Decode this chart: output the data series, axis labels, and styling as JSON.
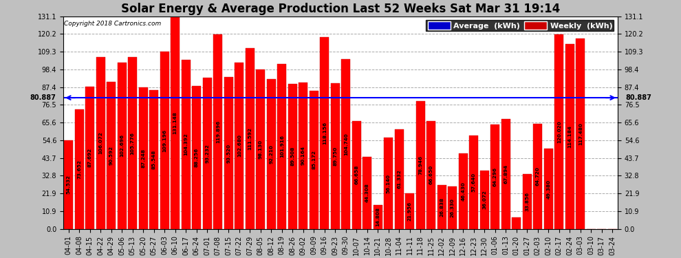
{
  "title": "Solar Energy & Average Production Last 52 Weeks Sat Mar 31 19:14",
  "copyright": "Copyright 2018 Cartronics.com",
  "average_line": 80.887,
  "average_label": "80.887",
  "ylim": [
    0,
    131.1
  ],
  "yticks": [
    0.0,
    10.9,
    21.9,
    32.8,
    43.7,
    54.6,
    65.6,
    76.5,
    87.4,
    98.4,
    109.3,
    120.2,
    131.1
  ],
  "bar_color": "#FF0000",
  "avg_line_color": "#0000FF",
  "background_color": "#C0C0C0",
  "plot_bg_color": "#FFFFFF",
  "legend_avg_color": "#0000CC",
  "legend_weekly_color": "#CC0000",
  "labels": [
    "04-01",
    "04-08",
    "04-15",
    "04-22",
    "04-29",
    "05-06",
    "05-13",
    "05-20",
    "05-27",
    "06-03",
    "06-10",
    "06-17",
    "06-24",
    "07-01",
    "07-08",
    "07-15",
    "07-22",
    "07-29",
    "08-05",
    "08-12",
    "08-19",
    "08-26",
    "09-02",
    "09-09",
    "09-16",
    "09-23",
    "09-30",
    "10-07",
    "10-14",
    "10-21",
    "10-28",
    "11-04",
    "11-11",
    "11-18",
    "11-25",
    "12-02",
    "12-09",
    "12-16",
    "12-23",
    "12-30",
    "01-06",
    "01-13",
    "01-20",
    "01-27",
    "02-03",
    "02-10",
    "02-17",
    "02-24",
    "03-03",
    "03-10",
    "03-17",
    "03-24"
  ],
  "values": [
    54.532,
    73.652,
    87.692,
    106.072,
    90.592,
    102.696,
    105.776,
    87.248,
    85.548,
    109.196,
    131.148,
    104.392,
    88.256,
    93.232,
    119.896,
    93.52,
    102.68,
    111.592,
    98.13,
    92.21,
    101.916,
    89.508,
    90.164,
    85.172,
    118.156,
    89.75,
    104.74,
    66.658,
    44.308,
    14.808,
    56.14,
    61.332,
    21.956,
    78.946,
    66.65,
    26.838,
    26.33,
    46.43,
    57.64,
    36.072,
    64.296,
    67.894,
    7.26,
    33.856,
    64.72,
    49.38,
    120.02,
    114.184,
    117.48,
    0,
    0,
    0
  ],
  "bar_width": 0.85,
  "grid_color": "#AAAAAA",
  "tick_fontsize": 7,
  "title_fontsize": 12,
  "value_fontsize": 5.2
}
